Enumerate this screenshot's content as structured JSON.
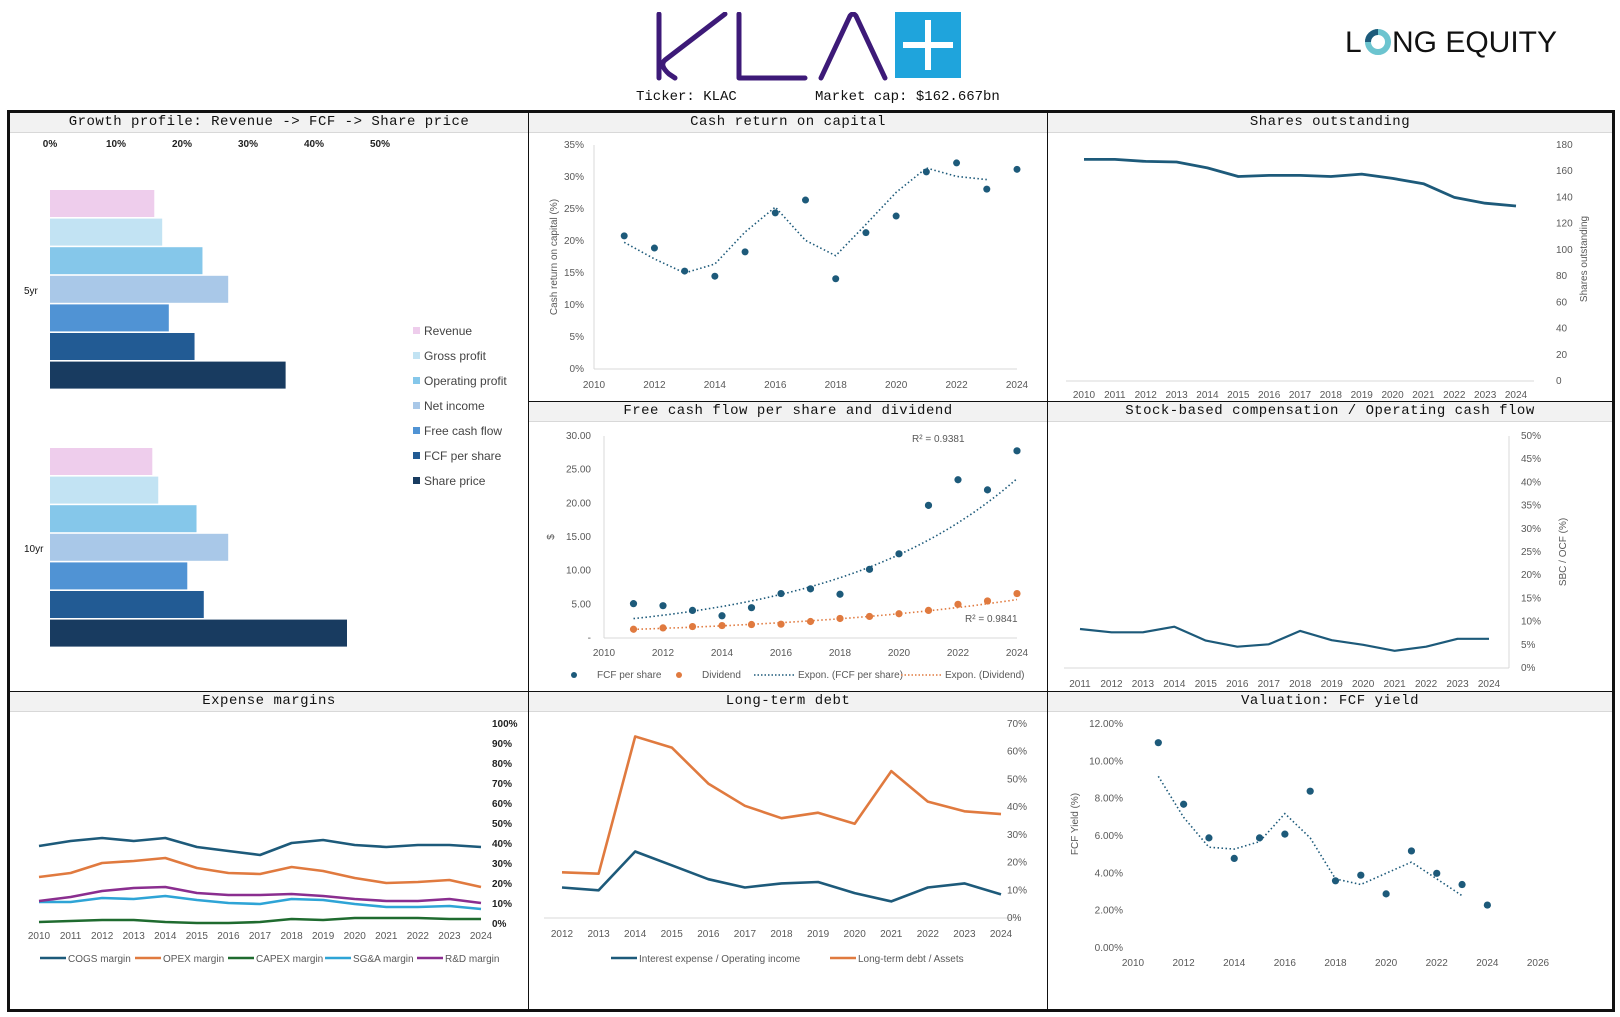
{
  "header": {
    "company_logo_text": "KLA",
    "ticker_label": "Ticker: KLAC",
    "market_cap_label": "Market cap: $162.667bn",
    "publisher_logo_text": "LONG EQUITY",
    "colors": {
      "kla_purple": "#3d1a78",
      "kla_blue": "#1fa4dc"
    }
  },
  "panels": {
    "growth": {
      "title": "Growth profile: Revenue -> FCF -> Share price"
    },
    "crocc": {
      "title": "Cash return on capital"
    },
    "shares": {
      "title": "Shares outstanding"
    },
    "fcfps": {
      "title": "Free cash flow per share and dividend"
    },
    "sbc": {
      "title": "Stock-based compensation / Operating cash flow"
    },
    "expense": {
      "title": "Expense margins"
    },
    "debt": {
      "title": "Long-term debt"
    },
    "fcfyield": {
      "title": "Valuation: FCF yield"
    }
  },
  "chart_data": [
    {
      "id": "growth",
      "type": "bar",
      "orientation": "horizontal",
      "title": "Growth profile: Revenue -> FCF -> Share price",
      "categories": [
        "5yr",
        "10yr"
      ],
      "xlim": [
        0,
        0.5
      ],
      "xticks": [
        "0%",
        "10%",
        "20%",
        "30%",
        "40%",
        "50%"
      ],
      "legend_position": "right",
      "series": [
        {
          "name": "Revenue",
          "color": "#eecdec",
          "values": [
            0.158,
            0.155
          ]
        },
        {
          "name": "Gross profit",
          "color": "#c2e3f3",
          "values": [
            0.17,
            0.164
          ]
        },
        {
          "name": "Operating profit",
          "color": "#85c7ea",
          "values": [
            0.231,
            0.222
          ]
        },
        {
          "name": "Net income",
          "color": "#a9c8e8",
          "values": [
            0.27,
            0.27
          ]
        },
        {
          "name": "Free cash flow",
          "color": "#5093d4",
          "values": [
            0.18,
            0.208
          ]
        },
        {
          "name": "FCF per share",
          "color": "#225b94",
          "values": [
            0.219,
            0.233
          ]
        },
        {
          "name": "Share price",
          "color": "#183b60",
          "values": [
            0.357,
            0.45
          ]
        }
      ]
    },
    {
      "id": "crocc",
      "type": "scatter",
      "title": "Cash return on capital",
      "ylabel": "Cash return on capital (%)",
      "xlim": [
        2010,
        2024
      ],
      "ylim": [
        0,
        0.35
      ],
      "xticks": [
        "2010",
        "2012",
        "2014",
        "2016",
        "2018",
        "2020",
        "2022",
        "2024"
      ],
      "yticks": [
        "0%",
        "5%",
        "10%",
        "15%",
        "20%",
        "25%",
        "30%",
        "35%"
      ],
      "x": [
        2011,
        2012,
        2013,
        2014,
        2015,
        2016,
        2017,
        2018,
        2019,
        2020,
        2021,
        2022,
        2023,
        2024
      ],
      "values": [
        0.208,
        0.189,
        0.153,
        0.145,
        0.183,
        0.244,
        0.264,
        0.141,
        0.213,
        0.239,
        0.308,
        0.322,
        0.281,
        0.312
      ],
      "trendline": {
        "type": "moving average",
        "x": [
          2011,
          2012,
          2013,
          2014,
          2015,
          2016,
          2017,
          2018,
          2019,
          2020,
          2021,
          2022,
          2023
        ],
        "values": [
          0.198,
          0.172,
          0.15,
          0.164,
          0.214,
          0.253,
          0.201,
          0.177,
          0.226,
          0.276,
          0.314,
          0.301,
          0.296
        ]
      },
      "color": "#1d5a7a"
    },
    {
      "id": "shares",
      "type": "line",
      "title": "Shares outstanding",
      "ylabel": "Shares outstanding",
      "ylim": [
        0,
        180
      ],
      "yticks": [
        "0",
        "20",
        "40",
        "60",
        "80",
        "100",
        "120",
        "140",
        "160",
        "180"
      ],
      "x": [
        "2010",
        "2011",
        "2012",
        "2013",
        "2014",
        "2015",
        "2016",
        "2017",
        "2018",
        "2019",
        "2020",
        "2021",
        "2022",
        "2023",
        "2024"
      ],
      "values": [
        169,
        169,
        167.5,
        167,
        162.5,
        156,
        156.8,
        156.8,
        156,
        157.8,
        154.5,
        150.5,
        140,
        135.6,
        133.5
      ],
      "color": "#1d5a7a"
    },
    {
      "id": "fcfps",
      "type": "scatter",
      "title": "Free cash flow per share and dividend",
      "ylabel": "$",
      "xlim": [
        2010,
        2024
      ],
      "ylim": [
        0,
        30
      ],
      "xticks": [
        "2010",
        "2012",
        "2014",
        "2016",
        "2018",
        "2020",
        "2022",
        "2024"
      ],
      "yticks": [
        "-",
        "5.00",
        "10.00",
        "15.00",
        "20.00",
        "25.00",
        "30.00"
      ],
      "x": [
        2011,
        2012,
        2013,
        2014,
        2015,
        2016,
        2017,
        2018,
        2019,
        2020,
        2021,
        2022,
        2023,
        2024
      ],
      "series": [
        {
          "name": "FCF per share",
          "color": "#1d5a7a",
          "values": [
            5.1,
            4.8,
            4.1,
            3.3,
            4.5,
            6.6,
            7.3,
            6.5,
            10.2,
            12.5,
            19.7,
            23.5,
            22.0,
            27.8
          ],
          "trend": {
            "name": "Expon. (FCF per share)",
            "r2": "R² = 0.9381",
            "a": 2.88,
            "b": 0.162
          }
        },
        {
          "name": "Dividend",
          "color": "#e07a3f",
          "values": [
            1.3,
            1.5,
            1.7,
            1.85,
            2.0,
            2.05,
            2.45,
            2.9,
            3.2,
            3.6,
            4.1,
            5.0,
            5.5,
            6.6
          ],
          "trend": {
            "name": "Expon. (Dividend)",
            "r2": "R² = 0.9841",
            "a": 1.28,
            "b": 0.115
          }
        }
      ],
      "legend": [
        "FCF per share",
        "Dividend",
        "Expon. (FCF per share)",
        "Expon. (Dividend)"
      ],
      "legend_position": "bottom"
    },
    {
      "id": "sbc",
      "type": "line",
      "title": "Stock-based compensation / Operating cash flow",
      "ylabel": "SBC / OCF (%)",
      "ylim": [
        0,
        0.5
      ],
      "yticks": [
        "0%",
        "5%",
        "10%",
        "15%",
        "20%",
        "25%",
        "30%",
        "35%",
        "40%",
        "45%",
        "50%"
      ],
      "x": [
        "2011",
        "2012",
        "2013",
        "2014",
        "2015",
        "2016",
        "2017",
        "2018",
        "2019",
        "2020",
        "2021",
        "2022",
        "2023",
        "2024"
      ],
      "values": [
        0.084,
        0.077,
        0.077,
        0.089,
        0.059,
        0.046,
        0.051,
        0.08,
        0.06,
        0.05,
        0.037,
        0.046,
        0.063,
        0.063
      ],
      "color": "#1d5a7a"
    },
    {
      "id": "expense",
      "type": "line",
      "title": "Expense margins",
      "ylim": [
        0,
        1
      ],
      "yticks": [
        "0%",
        "10%",
        "20%",
        "30%",
        "40%",
        "50%",
        "60%",
        "70%",
        "80%",
        "90%",
        "100%"
      ],
      "x": [
        "2010",
        "2011",
        "2012",
        "2013",
        "2014",
        "2015",
        "2016",
        "2017",
        "2018",
        "2019",
        "2020",
        "2021",
        "2022",
        "2023",
        "2024"
      ],
      "series": [
        {
          "name": "COGS margin",
          "color": "#1d5a7a",
          "values": [
            0.39,
            0.415,
            0.43,
            0.415,
            0.43,
            0.385,
            0.365,
            0.345,
            0.405,
            0.42,
            0.395,
            0.385,
            0.395,
            0.395,
            0.385
          ]
        },
        {
          "name": "OPEX margin",
          "color": "#e07a3f",
          "values": [
            0.235,
            0.255,
            0.305,
            0.315,
            0.33,
            0.28,
            0.255,
            0.25,
            0.285,
            0.265,
            0.23,
            0.205,
            0.21,
            0.22,
            0.185
          ]
        },
        {
          "name": "CAPEX margin",
          "color": "#1f6b2f",
          "values": [
            0.01,
            0.015,
            0.02,
            0.02,
            0.01,
            0.005,
            0.005,
            0.01,
            0.025,
            0.02,
            0.03,
            0.03,
            0.03,
            0.025,
            0.025
          ]
        },
        {
          "name": "SG&A margin",
          "color": "#2ea4d6",
          "values": [
            0.11,
            0.11,
            0.13,
            0.125,
            0.14,
            0.12,
            0.105,
            0.1,
            0.125,
            0.12,
            0.1,
            0.085,
            0.085,
            0.09,
            0.075
          ]
        },
        {
          "name": "R&D margin",
          "color": "#8a2e8f",
          "values": [
            0.115,
            0.135,
            0.165,
            0.18,
            0.185,
            0.155,
            0.145,
            0.145,
            0.15,
            0.14,
            0.125,
            0.115,
            0.115,
            0.125,
            0.105
          ]
        }
      ],
      "legend_position": "bottom"
    },
    {
      "id": "debt",
      "type": "line",
      "title": "Long-term debt",
      "ylim": [
        0,
        0.7
      ],
      "yticks": [
        "0%",
        "10%",
        "20%",
        "30%",
        "40%",
        "50%",
        "60%",
        "70%"
      ],
      "x": [
        "2012",
        "2013",
        "2014",
        "2015",
        "2016",
        "2017",
        "2018",
        "2019",
        "2020",
        "2021",
        "2022",
        "2023",
        "2024"
      ],
      "series": [
        {
          "name": "Interest expense / Operating income",
          "color": "#1d5a7a",
          "values": [
            0.11,
            0.1,
            0.24,
            0.19,
            0.14,
            0.11,
            0.125,
            0.13,
            0.09,
            0.06,
            0.11,
            0.125,
            0.085
          ]
        },
        {
          "name": "Long-term debt / Assets",
          "color": "#e07a3f",
          "values": [
            0.165,
            0.16,
            0.655,
            0.615,
            0.485,
            0.405,
            0.36,
            0.38,
            0.34,
            0.53,
            0.42,
            0.385,
            0.375
          ]
        }
      ],
      "legend_position": "bottom"
    },
    {
      "id": "fcfyield",
      "type": "scatter",
      "title": "Valuation: FCF yield",
      "ylabel": "FCF Yield (%)",
      "xlim": [
        2010,
        2026
      ],
      "ylim": [
        0,
        0.12
      ],
      "xticks": [
        "2010",
        "2012",
        "2014",
        "2016",
        "2018",
        "2020",
        "2022",
        "2024",
        "2026"
      ],
      "yticks": [
        "0.00%",
        "2.00%",
        "4.00%",
        "6.00%",
        "8.00%",
        "10.00%",
        "12.00%"
      ],
      "x": [
        2011,
        2012,
        2013,
        2014,
        2015,
        2016,
        2017,
        2018,
        2019,
        2020,
        2021,
        2022,
        2023,
        2024
      ],
      "values": [
        0.11,
        0.077,
        0.059,
        0.048,
        0.059,
        0.061,
        0.084,
        0.036,
        0.039,
        0.029,
        0.052,
        0.04,
        0.034,
        0.023
      ],
      "trendline": {
        "type": "moving average",
        "x": [
          2011,
          2012,
          2013,
          2014,
          2015,
          2016,
          2017,
          2018,
          2019,
          2020,
          2021,
          2022,
          2023
        ],
        "values": [
          0.092,
          0.07,
          0.054,
          0.053,
          0.057,
          0.072,
          0.059,
          0.037,
          0.034,
          0.04,
          0.046,
          0.037,
          0.028
        ]
      },
      "color": "#1d5a7a"
    }
  ]
}
